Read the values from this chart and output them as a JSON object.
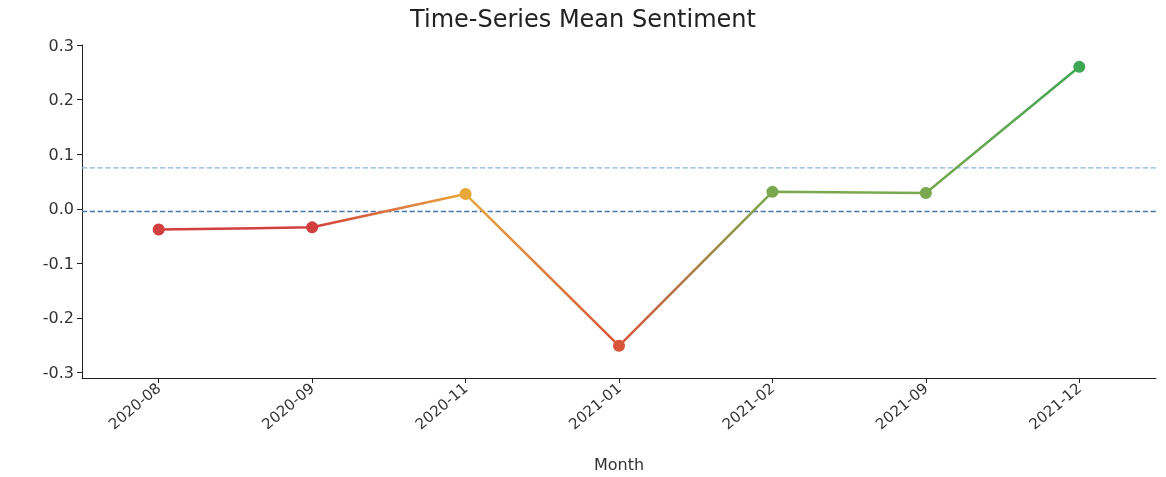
{
  "chart_data": {
    "type": "line",
    "title": "Time-Series Mean Sentiment",
    "xlabel": "Month",
    "categories": [
      "2020-08",
      "2020-09",
      "2020-11",
      "2021-01",
      "2021-02",
      "2021-09",
      "2021-12"
    ],
    "values": [
      -0.038,
      -0.034,
      0.027,
      -0.251,
      0.031,
      0.029,
      0.26
    ],
    "colors": [
      "#d13f3f",
      "#d13f3f",
      "#e8a73a",
      "#d9553a",
      "#7aa84e",
      "#7aa84e",
      "#3fa653"
    ],
    "ylim": [
      -0.31,
      0.3
    ],
    "yticks": [
      -0.3,
      -0.2,
      -0.1,
      {
        "value": 0,
        "label": "0.0"
      },
      0.1,
      0.2,
      0.3
    ],
    "grid": false,
    "marker": "circle",
    "line_style": "solid",
    "ref_lines": [
      {
        "axis": "y",
        "value": 0.075,
        "color": "#8ab6d9",
        "line_style": "dashed"
      },
      {
        "axis": "y",
        "value": -0.005,
        "color": "#4a77a8",
        "line_style": "dashed"
      }
    ]
  }
}
